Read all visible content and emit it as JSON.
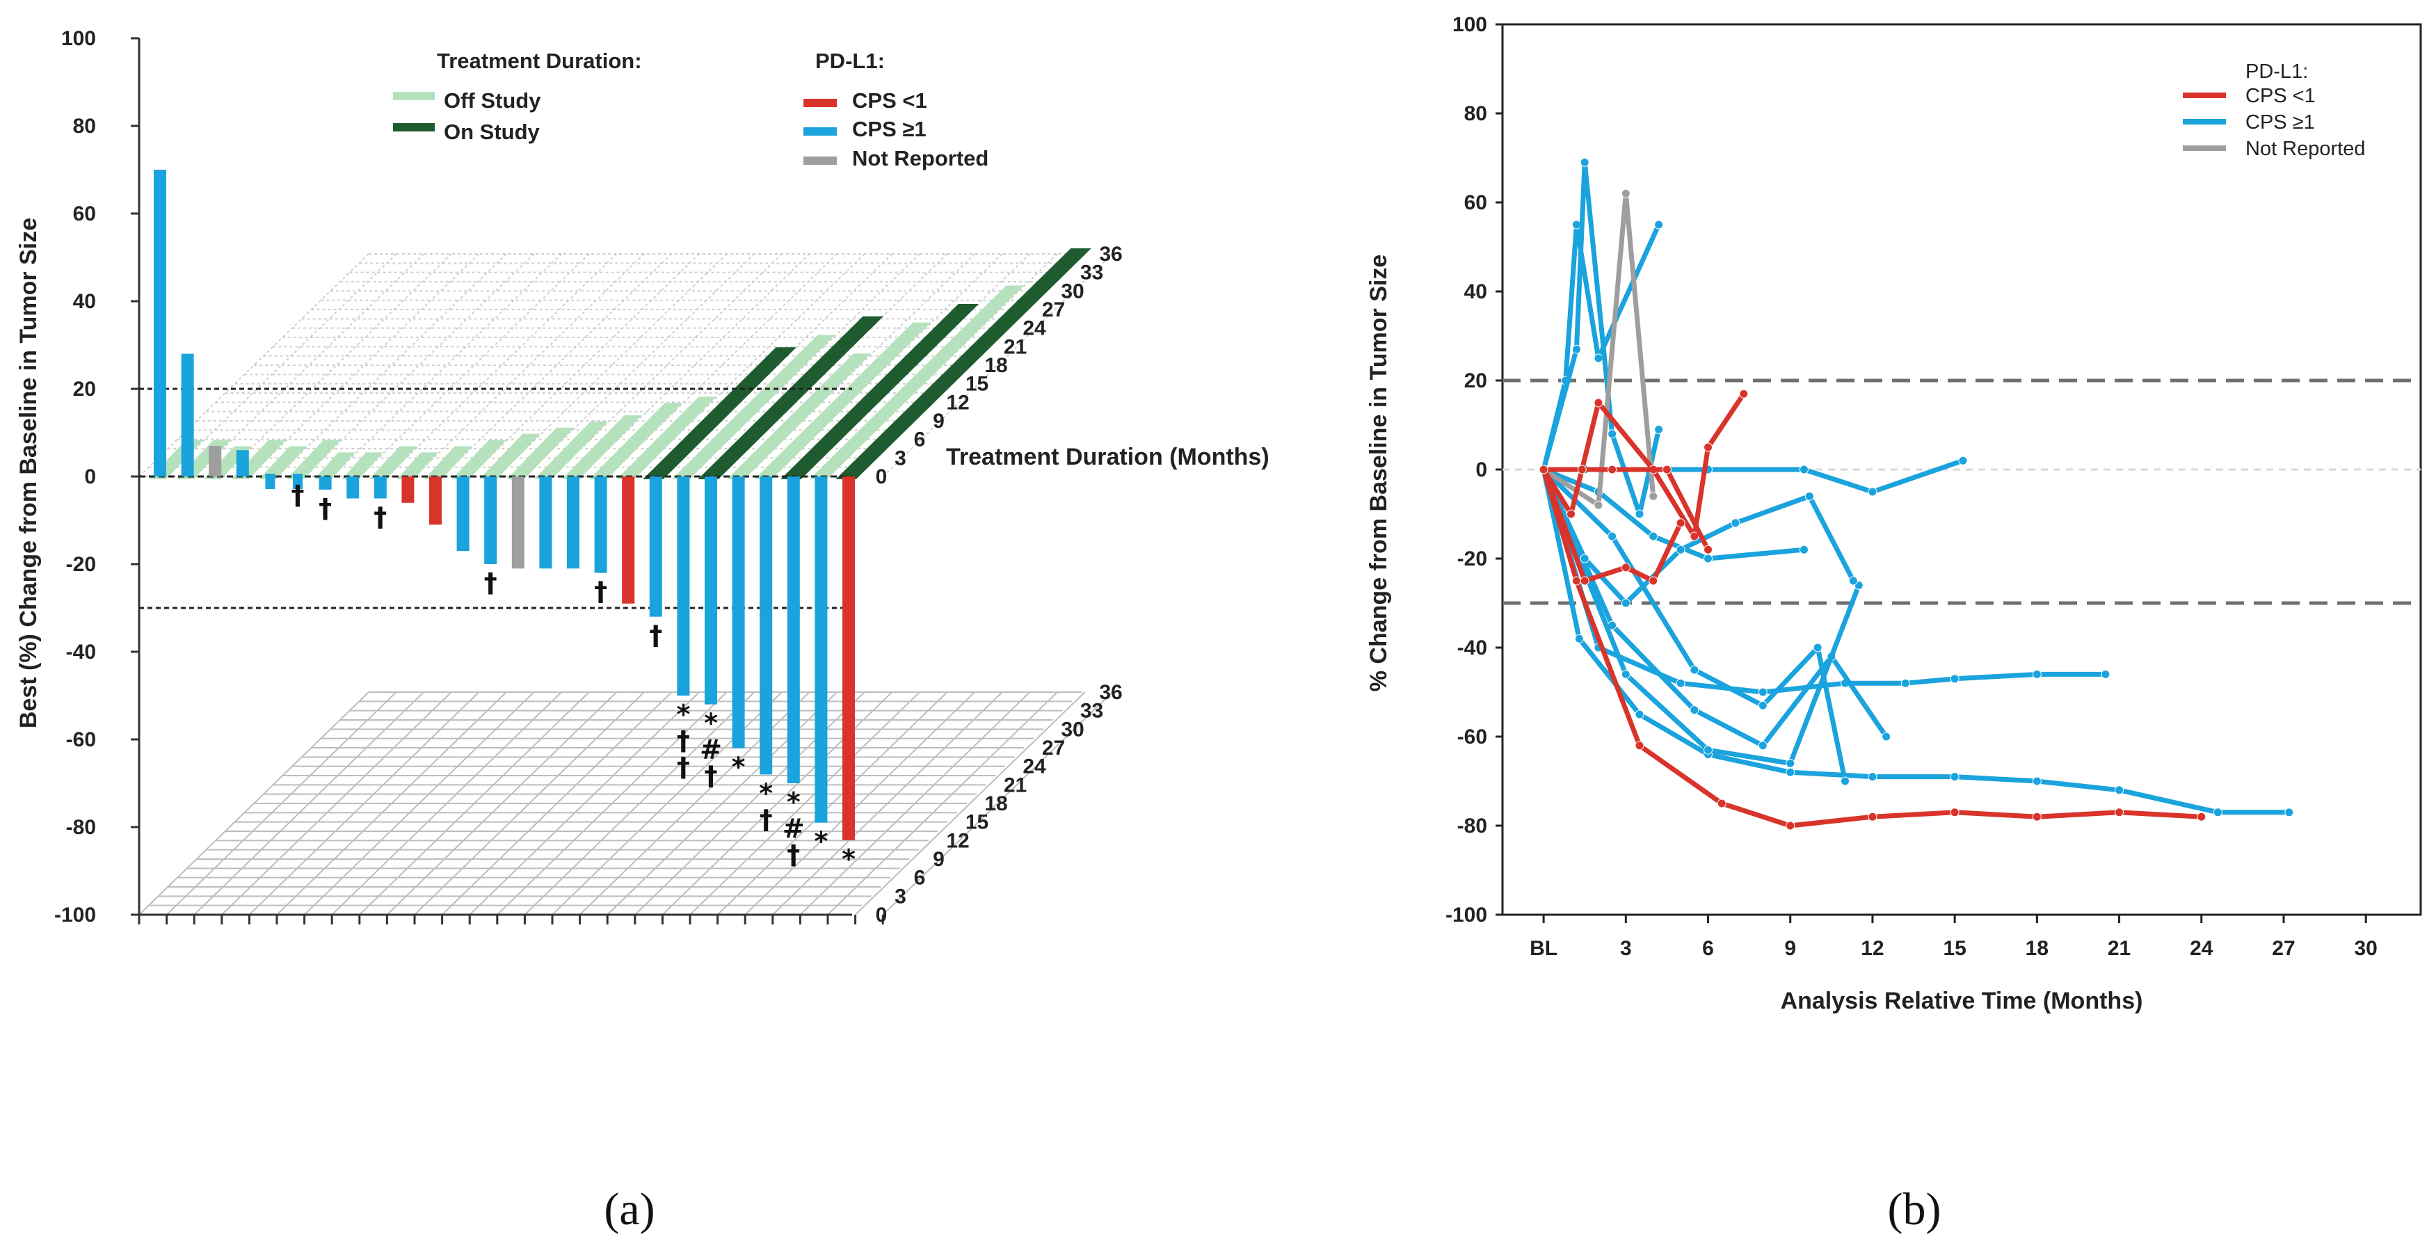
{
  "chart_data": [
    {
      "type": "bar",
      "panel": "a",
      "panel_label": "(a)",
      "ylabel": "Best (%) Change from Baseline in Tumor Size",
      "ylim": [
        -100,
        100
      ],
      "y_ticks": [
        "100",
        "80",
        "60",
        "40",
        "20",
        "0",
        "-20",
        "-40",
        "-60",
        "-80",
        "-100"
      ],
      "reference_lines": [
        20,
        -30
      ],
      "pd_l1_legend": {
        "title": "PD-L1:",
        "entries": [
          {
            "label": "CPS <1",
            "color": "#d9342b"
          },
          {
            "label": "CPS ≥1",
            "color": "#1aa3dd"
          },
          {
            "label": "Not Reported",
            "color": "#9e9e9e"
          }
        ]
      },
      "duration_legend": {
        "title": "Treatment Duration:",
        "entries": [
          {
            "label": "Off Study",
            "color": "#b5e2bd"
          },
          {
            "label": "On Study",
            "color": "#1e5c30"
          }
        ]
      },
      "duration_axis_label": "Treatment Duration (Months)",
      "duration_ticks": [
        "0",
        "3",
        "6",
        "9",
        "12",
        "15",
        "18",
        "21",
        "24",
        "27",
        "30",
        "33",
        "36"
      ],
      "bars": [
        {
          "value": 70,
          "pdl1": "CPS>=1",
          "marker": ""
        },
        {
          "value": 28,
          "pdl1": "CPS>=1",
          "marker": ""
        },
        {
          "value": 7,
          "pdl1": "NR",
          "marker": ""
        },
        {
          "value": 6,
          "pdl1": "CPS>=1",
          "marker": ""
        },
        {
          "value": 0,
          "pdl1": "CPS>=1",
          "marker": ""
        },
        {
          "value": 0,
          "pdl1": "CPS>=1",
          "marker": "†"
        },
        {
          "value": -3,
          "pdl1": "CPS>=1",
          "marker": "†"
        },
        {
          "value": -5,
          "pdl1": "CPS>=1",
          "marker": ""
        },
        {
          "value": -5,
          "pdl1": "CPS>=1",
          "marker": "†"
        },
        {
          "value": -6,
          "pdl1": "CPS<1",
          "marker": ""
        },
        {
          "value": -11,
          "pdl1": "CPS<1",
          "marker": ""
        },
        {
          "value": -17,
          "pdl1": "CPS>=1",
          "marker": ""
        },
        {
          "value": -20,
          "pdl1": "CPS>=1",
          "marker": "†"
        },
        {
          "value": -21,
          "pdl1": "NR",
          "marker": ""
        },
        {
          "value": -21,
          "pdl1": "CPS>=1",
          "marker": ""
        },
        {
          "value": -21,
          "pdl1": "CPS>=1",
          "marker": ""
        },
        {
          "value": -22,
          "pdl1": "CPS>=1",
          "marker": "†"
        },
        {
          "value": -29,
          "pdl1": "CPS<1",
          "marker": ""
        },
        {
          "value": -32,
          "pdl1": "CPS>=1",
          "marker": "†"
        },
        {
          "value": -50,
          "pdl1": "CPS>=1",
          "marker": "*††"
        },
        {
          "value": -52,
          "pdl1": "CPS>=1",
          "marker": "*#†"
        },
        {
          "value": -62,
          "pdl1": "CPS>=1",
          "marker": "*"
        },
        {
          "value": -68,
          "pdl1": "CPS>=1",
          "marker": "*†"
        },
        {
          "value": -70,
          "pdl1": "CPS>=1",
          "marker": "*#†"
        },
        {
          "value": -79,
          "pdl1": "CPS>=1",
          "marker": "*"
        },
        {
          "value": -83,
          "pdl1": "CPS<1",
          "marker": "*"
        }
      ],
      "duration_bars_months": [
        5,
        5,
        4,
        5,
        4,
        5,
        3,
        3,
        4,
        3,
        4,
        5,
        6,
        7,
        8,
        9,
        11,
        12,
        20,
        22,
        25,
        19,
        24,
        27,
        30,
        36
      ],
      "duration_on_study": [
        false,
        false,
        false,
        false,
        false,
        false,
        false,
        false,
        false,
        false,
        false,
        false,
        false,
        false,
        false,
        false,
        false,
        false,
        true,
        false,
        true,
        false,
        false,
        true,
        false,
        true
      ]
    },
    {
      "type": "line",
      "panel": "b",
      "panel_label": "(b)",
      "xlabel": "Analysis Relative Time (Months)",
      "ylabel": "% Change from Baseline in Tumor Size",
      "x_ticks": [
        "BL",
        "3",
        "6",
        "9",
        "12",
        "15",
        "18",
        "21",
        "24",
        "27",
        "30"
      ],
      "xlim": [
        -1.5,
        32
      ],
      "ylim": [
        -100,
        100
      ],
      "y_ticks": [
        "100",
        "80",
        "60",
        "40",
        "20",
        "0",
        "-20",
        "-40",
        "-60",
        "-80",
        "-100"
      ],
      "reference_lines": [
        20,
        0,
        -30
      ],
      "legend": {
        "title": "PD-L1:",
        "entries": [
          {
            "label": "CPS <1",
            "color": "#d9342b"
          },
          {
            "label": "CPS ≥1",
            "color": "#1aa3dd"
          },
          {
            "label": "Not Reported",
            "color": "#9e9e9e"
          }
        ]
      },
      "series": [
        {
          "group": "CPS<1",
          "x": [
            0,
            1.2,
            3.5,
            6.5,
            9,
            12,
            15,
            18,
            21,
            24
          ],
          "y": [
            0,
            -25,
            -62,
            -75,
            -80,
            -78,
            -77,
            -78,
            -77,
            -78
          ]
        },
        {
          "group": "CPS<1",
          "x": [
            0,
            1,
            2,
            4,
            5.5,
            6,
            7.3
          ],
          "y": [
            0,
            -10,
            15,
            0,
            -15,
            5,
            17
          ]
        },
        {
          "group": "CPS<1",
          "x": [
            0,
            1.5,
            3,
            4,
            5
          ],
          "y": [
            0,
            -25,
            -22,
            -25,
            -12
          ]
        },
        {
          "group": "CPS<1",
          "x": [
            0,
            1.4,
            2.5,
            4.5,
            6
          ],
          "y": [
            0,
            0,
            0,
            0,
            -18
          ]
        },
        {
          "group": "CPS>=1",
          "x": [
            0,
            1.3,
            3.5,
            6,
            9,
            12,
            15,
            18,
            21,
            24.6,
            27.2
          ],
          "y": [
            0,
            -38,
            -55,
            -64,
            -68,
            -69,
            -69,
            -70,
            -72,
            -77,
            -77
          ]
        },
        {
          "group": "CPS>=1",
          "x": [
            0,
            0.8,
            1.2,
            2,
            4.2
          ],
          "y": [
            0,
            20,
            55,
            25,
            55
          ]
        },
        {
          "group": "CPS>=1",
          "x": [
            0,
            1.5,
            4,
            6,
            9.5,
            12,
            15.3
          ],
          "y": [
            0,
            0,
            0,
            0,
            0,
            -5,
            2
          ]
        },
        {
          "group": "CPS>=1",
          "x": [
            0,
            2,
            5,
            8,
            11,
            13.2,
            15,
            18,
            20.5
          ],
          "y": [
            0,
            -40,
            -48,
            -50,
            -48,
            -48,
            -47,
            -46,
            -46
          ]
        },
        {
          "group": "CPS>=1",
          "x": [
            0,
            1.2,
            1.5,
            2.5,
            3.5,
            4.2
          ],
          "y": [
            0,
            27,
            69,
            8,
            -10,
            9
          ]
        },
        {
          "group": "CPS>=1",
          "x": [
            0,
            2,
            4,
            6,
            9.5
          ],
          "y": [
            0,
            -5,
            -15,
            -20,
            -18
          ]
        },
        {
          "group": "CPS>=1",
          "x": [
            0,
            2.5,
            5.5,
            8,
            10.5,
            12.5
          ],
          "y": [
            0,
            -35,
            -54,
            -62,
            -42,
            -60
          ]
        },
        {
          "group": "CPS>=1",
          "x": [
            0,
            3,
            6,
            9,
            11.5
          ],
          "y": [
            0,
            -46,
            -63,
            -66,
            -26
          ]
        },
        {
          "group": "CPS>=1",
          "x": [
            0,
            2.5,
            5.5,
            8,
            10,
            11
          ],
          "y": [
            0,
            -15,
            -45,
            -53,
            -40,
            -70
          ]
        },
        {
          "group": "CPS>=1",
          "x": [
            0,
            1.5,
            3,
            5,
            7,
            9.7,
            11.3
          ],
          "y": [
            0,
            -20,
            -30,
            -18,
            -12,
            -6,
            -25
          ]
        }
      ],
      "not_reported_series": {
        "x": [
          0,
          2,
          3,
          4
        ],
        "y": [
          0,
          -8,
          62,
          -6
        ]
      }
    }
  ]
}
